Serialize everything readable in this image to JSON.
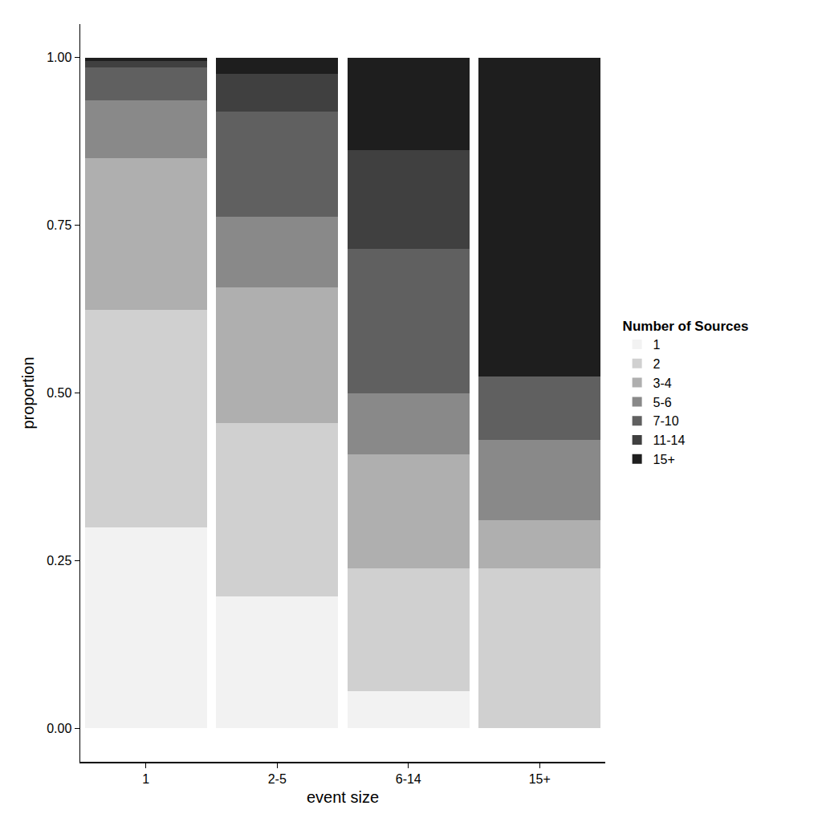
{
  "chart_data": {
    "type": "bar",
    "stacked": true,
    "grid": false,
    "legend": "right",
    "legend_title": "Number of Sources",
    "x_label": "event size",
    "y_label": "proportion",
    "categories": [
      "1",
      "2-5",
      "6-14",
      "15+"
    ],
    "ylim": [
      -0.05,
      1.05
    ],
    "yticks": [
      {
        "value": 0,
        "label": "0.00"
      },
      {
        "value": 0.25,
        "label": "0.25"
      },
      {
        "value": 0.5,
        "label": "0.50"
      },
      {
        "value": 0.75,
        "label": "0.75"
      },
      {
        "value": 1,
        "label": "1.00"
      }
    ],
    "series": [
      {
        "name": "1",
        "color": "#f2f2f2",
        "values": [
          0.299,
          0.196,
          0.055,
          0
        ]
      },
      {
        "name": "2",
        "color": "#d0d0d0",
        "values": [
          0.325,
          0.259,
          0.183,
          0.238
        ]
      },
      {
        "name": "3-4",
        "color": "#afafaf",
        "values": [
          0.226,
          0.203,
          0.17,
          0.072
        ]
      },
      {
        "name": "5-6",
        "color": "#898989",
        "values": [
          0.086,
          0.105,
          0.092,
          0.12
        ]
      },
      {
        "name": "7-10",
        "color": "#606060",
        "values": [
          0.049,
          0.157,
          0.215,
          0.095
        ]
      },
      {
        "name": "11-14",
        "color": "#404040",
        "values": [
          0.01,
          0.056,
          0.147,
          0
        ]
      },
      {
        "name": "15+",
        "color": "#1e1e1e",
        "values": [
          0.005,
          0.024,
          0.138,
          0.475
        ]
      }
    ]
  }
}
